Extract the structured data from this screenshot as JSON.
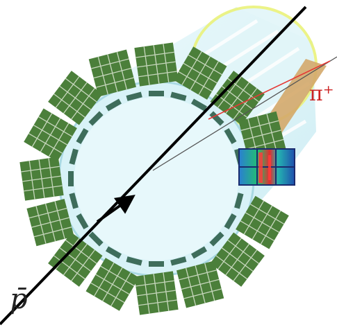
{
  "labels": {
    "particle_in": "p̄",
    "particle_out": "π⁺"
  },
  "colors": {
    "background": "#ffffff",
    "tank_fill": "#d8f2f7",
    "tank_edge": "#a9d9e3",
    "plate_fill": "#4b7f3a",
    "plate_line": "#c7d7bd",
    "bar_fill": "#3e6d5b",
    "ring_highlight": "#eaf27b",
    "cone_fill": "#d4a96a",
    "beam_line": "#000000",
    "pion_track": "#e53935",
    "label_red": "#cc2222",
    "label_black": "#222222"
  },
  "icons": [
    "arrow-icon",
    "detector-hit-pattern-icon"
  ]
}
